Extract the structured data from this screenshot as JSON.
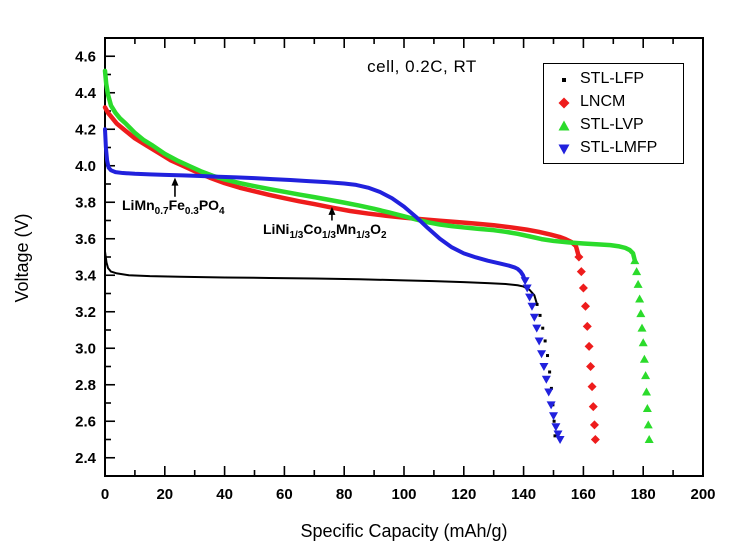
{
  "chart_data": {
    "type": "line",
    "title": "cell, 0.2C, RT",
    "xlabel": "Specific Capacity (mAh/g)",
    "ylabel": "Voltage (V)",
    "xlim": [
      0,
      200
    ],
    "ylim": [
      2.3,
      4.7
    ],
    "x_major_step": 20,
    "x_minor_step": 10,
    "y_major_step": 0.2,
    "y_minor_step": 0.1,
    "grid": false,
    "legend_position": "upper-right-inside",
    "series": [
      {
        "name": "STL-LFP",
        "color": "#000000",
        "marker": "square",
        "marker_size": 3,
        "line_width": 2,
        "drop_start_x": 144,
        "points": [
          [
            0,
            3.53
          ],
          [
            0.5,
            3.47
          ],
          [
            1,
            3.44
          ],
          [
            2,
            3.42
          ],
          [
            4,
            3.41
          ],
          [
            8,
            3.4
          ],
          [
            15,
            3.395
          ],
          [
            25,
            3.392
          ],
          [
            40,
            3.388
          ],
          [
            55,
            3.385
          ],
          [
            70,
            3.382
          ],
          [
            85,
            3.378
          ],
          [
            100,
            3.372
          ],
          [
            110,
            3.368
          ],
          [
            120,
            3.362
          ],
          [
            128,
            3.357
          ],
          [
            134,
            3.352
          ],
          [
            138,
            3.345
          ],
          [
            140,
            3.338
          ],
          [
            142,
            3.32
          ],
          [
            143.6,
            3.29
          ],
          [
            144.5,
            3.24
          ],
          [
            145.5,
            3.18
          ],
          [
            146.4,
            3.11
          ],
          [
            147.2,
            3.04
          ],
          [
            148,
            2.96
          ],
          [
            148.7,
            2.87
          ],
          [
            149.3,
            2.78
          ],
          [
            149.8,
            2.69
          ],
          [
            150.2,
            2.6
          ],
          [
            150.5,
            2.52
          ]
        ]
      },
      {
        "name": "LNCM",
        "color": "#ee1c1c",
        "marker": "diamond",
        "marker_size": 7,
        "line_width": 4.5,
        "drop_start_x": 158,
        "points": [
          [
            0,
            4.32
          ],
          [
            1,
            4.29
          ],
          [
            2,
            4.27
          ],
          [
            4,
            4.23
          ],
          [
            7,
            4.19
          ],
          [
            10,
            4.15
          ],
          [
            14,
            4.11
          ],
          [
            18,
            4.07
          ],
          [
            22,
            4.03
          ],
          [
            26,
            4.0
          ],
          [
            30,
            3.97
          ],
          [
            35,
            3.935
          ],
          [
            40,
            3.905
          ],
          [
            45,
            3.88
          ],
          [
            50,
            3.86
          ],
          [
            55,
            3.84
          ],
          [
            60,
            3.822
          ],
          [
            65,
            3.805
          ],
          [
            70,
            3.79
          ],
          [
            76,
            3.77
          ],
          [
            82,
            3.752
          ],
          [
            88,
            3.738
          ],
          [
            94,
            3.726
          ],
          [
            100,
            3.716
          ],
          [
            106,
            3.707
          ],
          [
            112,
            3.699
          ],
          [
            118,
            3.691
          ],
          [
            124,
            3.683
          ],
          [
            130,
            3.674
          ],
          [
            136,
            3.662
          ],
          [
            141,
            3.65
          ],
          [
            145,
            3.638
          ],
          [
            149,
            3.623
          ],
          [
            152,
            3.61
          ],
          [
            154,
            3.598
          ],
          [
            156,
            3.582
          ],
          [
            157.5,
            3.56
          ],
          [
            158.5,
            3.5
          ],
          [
            159.3,
            3.42
          ],
          [
            160,
            3.33
          ],
          [
            160.7,
            3.23
          ],
          [
            161.3,
            3.12
          ],
          [
            161.9,
            3.01
          ],
          [
            162.4,
            2.9
          ],
          [
            162.9,
            2.79
          ],
          [
            163.3,
            2.68
          ],
          [
            163.7,
            2.58
          ],
          [
            164,
            2.5
          ]
        ]
      },
      {
        "name": "STL-LVP",
        "color": "#2bdb2b",
        "marker": "triangle-up",
        "marker_size": 7,
        "line_width": 4.5,
        "drop_start_x": 177,
        "points": [
          [
            0,
            4.52
          ],
          [
            0.4,
            4.45
          ],
          [
            1,
            4.39
          ],
          [
            2,
            4.33
          ],
          [
            3.5,
            4.29
          ],
          [
            5,
            4.26
          ],
          [
            7,
            4.23
          ],
          [
            10,
            4.18
          ],
          [
            13,
            4.14
          ],
          [
            16,
            4.11
          ],
          [
            20,
            4.065
          ],
          [
            24,
            4.03
          ],
          [
            28,
            4.0
          ],
          [
            32,
            3.97
          ],
          [
            36,
            3.945
          ],
          [
            40,
            3.925
          ],
          [
            45,
            3.905
          ],
          [
            50,
            3.888
          ],
          [
            55,
            3.872
          ],
          [
            60,
            3.857
          ],
          [
            65,
            3.842
          ],
          [
            70,
            3.828
          ],
          [
            75,
            3.813
          ],
          [
            80,
            3.798
          ],
          [
            85,
            3.782
          ],
          [
            90,
            3.764
          ],
          [
            95,
            3.744
          ],
          [
            100,
            3.723
          ],
          [
            104,
            3.706
          ],
          [
            108,
            3.69
          ],
          [
            112,
            3.678
          ],
          [
            116,
            3.669
          ],
          [
            120,
            3.662
          ],
          [
            125,
            3.654
          ],
          [
            130,
            3.647
          ],
          [
            134,
            3.638
          ],
          [
            138,
            3.627
          ],
          [
            142,
            3.613
          ],
          [
            146,
            3.598
          ],
          [
            150,
            3.588
          ],
          [
            155,
            3.58
          ],
          [
            160,
            3.574
          ],
          [
            165,
            3.569
          ],
          [
            169,
            3.565
          ],
          [
            172,
            3.558
          ],
          [
            174,
            3.55
          ],
          [
            175.5,
            3.538
          ],
          [
            176.6,
            3.52
          ],
          [
            177.2,
            3.48
          ],
          [
            177.8,
            3.42
          ],
          [
            178.3,
            3.35
          ],
          [
            178.8,
            3.27
          ],
          [
            179.2,
            3.19
          ],
          [
            179.6,
            3.11
          ],
          [
            180,
            3.03
          ],
          [
            180.4,
            2.94
          ],
          [
            180.8,
            2.85
          ],
          [
            181.1,
            2.76
          ],
          [
            181.4,
            2.67
          ],
          [
            181.7,
            2.58
          ],
          [
            182,
            2.5
          ]
        ]
      },
      {
        "name": "STL-LMFP",
        "color": "#2121dd",
        "marker": "triangle-down",
        "marker_size": 7,
        "line_width": 4,
        "drop_start_x": 140,
        "points": [
          [
            0,
            4.2
          ],
          [
            0.3,
            4.1
          ],
          [
            0.7,
            4.03
          ],
          [
            1.2,
            3.99
          ],
          [
            2,
            3.975
          ],
          [
            3.5,
            3.965
          ],
          [
            6,
            3.96
          ],
          [
            10,
            3.956
          ],
          [
            15,
            3.953
          ],
          [
            20,
            3.95
          ],
          [
            26,
            3.947
          ],
          [
            32,
            3.944
          ],
          [
            38,
            3.94
          ],
          [
            44,
            3.936
          ],
          [
            50,
            3.932
          ],
          [
            56,
            3.927
          ],
          [
            62,
            3.922
          ],
          [
            68,
            3.916
          ],
          [
            74,
            3.91
          ],
          [
            80,
            3.903
          ],
          [
            84,
            3.895
          ],
          [
            88,
            3.88
          ],
          [
            92,
            3.856
          ],
          [
            96,
            3.822
          ],
          [
            100,
            3.776
          ],
          [
            104,
            3.72
          ],
          [
            108,
            3.658
          ],
          [
            112,
            3.6
          ],
          [
            116,
            3.553
          ],
          [
            120,
            3.52
          ],
          [
            124,
            3.498
          ],
          [
            128,
            3.48
          ],
          [
            132,
            3.465
          ],
          [
            135,
            3.453
          ],
          [
            137,
            3.443
          ],
          [
            138,
            3.435
          ],
          [
            139,
            3.42
          ],
          [
            139.8,
            3.4
          ],
          [
            140.5,
            3.37
          ],
          [
            141.2,
            3.33
          ],
          [
            142,
            3.28
          ],
          [
            142.8,
            3.23
          ],
          [
            143.6,
            3.17
          ],
          [
            144.4,
            3.11
          ],
          [
            145.2,
            3.04
          ],
          [
            146,
            2.97
          ],
          [
            146.8,
            2.9
          ],
          [
            147.6,
            2.83
          ],
          [
            148.4,
            2.76
          ],
          [
            149.2,
            2.69
          ],
          [
            150,
            2.63
          ],
          [
            150.8,
            2.57
          ],
          [
            151.5,
            2.53
          ],
          [
            152.2,
            2.5
          ]
        ]
      }
    ],
    "annotations": {
      "a1": {
        "t0": "LiMn",
        "s0": "0.7",
        "t1": "Fe",
        "s1": "0.3",
        "t2": "PO",
        "s2": "4"
      },
      "a2": {
        "t0": "LiNi",
        "s0": "1/3",
        "t1": "Co",
        "s1": "1/3",
        "t2": "Mn",
        "s2": "1/3",
        "t3": "O",
        "s3": "2"
      }
    },
    "arrows": [
      {
        "x": 23.4,
        "v_tip": 3.935,
        "v_tail": 3.83
      },
      {
        "x": 75.9,
        "v_tip": 3.775,
        "v_tail": 3.7
      }
    ]
  }
}
